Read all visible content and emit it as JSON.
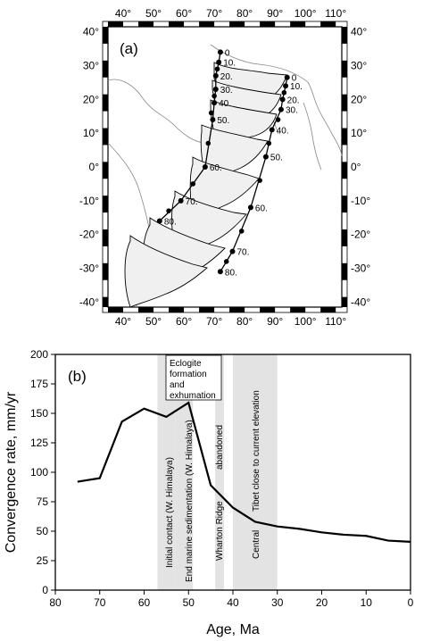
{
  "map": {
    "panel_label": "(a)",
    "lon_ticks": [
      40,
      50,
      60,
      70,
      80,
      90,
      100,
      110
    ],
    "lat_ticks": [
      40,
      30,
      20,
      10,
      0,
      -10,
      -20,
      -30,
      -40
    ],
    "lon_labels": [
      "40°",
      "50°",
      "60°",
      "70°",
      "80°",
      "90°",
      "100°",
      "110°"
    ],
    "lat_labels": [
      "40°",
      "30°",
      "20°",
      "10°",
      "0°",
      "-10°",
      "-20°",
      "-30°",
      "-40°"
    ],
    "west_track_labels": [
      "0",
      "10.",
      "20.",
      "30.",
      "40.",
      "50.",
      "60.",
      "70.",
      "80."
    ],
    "east_track_labels": [
      "0",
      "10.",
      "20.",
      "30.",
      "40.",
      "50.",
      "60.",
      "70.",
      "80."
    ]
  },
  "chart_data": {
    "type": "line",
    "panel_label": "(b)",
    "xlabel": "Age, Ma",
    "ylabel": "Convergence rate, mm/yr",
    "xlim": [
      80,
      0
    ],
    "ylim": [
      0,
      200
    ],
    "x_ticks": [
      80,
      70,
      60,
      50,
      40,
      30,
      20,
      10,
      0
    ],
    "y_ticks": [
      0,
      25,
      50,
      75,
      100,
      125,
      150,
      175,
      200
    ],
    "series": [
      {
        "x": [
          75,
          70,
          65,
          60,
          55,
          50,
          45,
          40,
          35,
          30,
          25,
          20,
          15,
          10,
          5,
          0
        ],
        "y": [
          92,
          95,
          143,
          154,
          147,
          159,
          89,
          70,
          58,
          54,
          52,
          49,
          47,
          46,
          42,
          41
        ]
      }
    ],
    "shaded_bands": [
      {
        "from": 57,
        "to": 53,
        "label": "Initial contact (W. Himalaya)"
      },
      {
        "from": 53,
        "to": 49,
        "label": "End marine sedimentation (W. Himalaya)"
      },
      {
        "from": 44,
        "to": 42,
        "label": "Wharton Ridge abandoned"
      },
      {
        "from": 40,
        "to": 30,
        "label": "Central Tibet close to current elevation"
      }
    ],
    "band_labels": {
      "band1": "Initial contact (W. Himalaya)",
      "band2": "End marine sedimentation (W. Himalaya)",
      "band3a": "Wharton Ridge",
      "band3b": "abandoned",
      "band4a": "Central",
      "band4b": "Tibet close to current elevation"
    },
    "annotation": {
      "line1": "Eclogite",
      "line2": "formation",
      "line3": "and",
      "line4": "exhumation"
    }
  }
}
